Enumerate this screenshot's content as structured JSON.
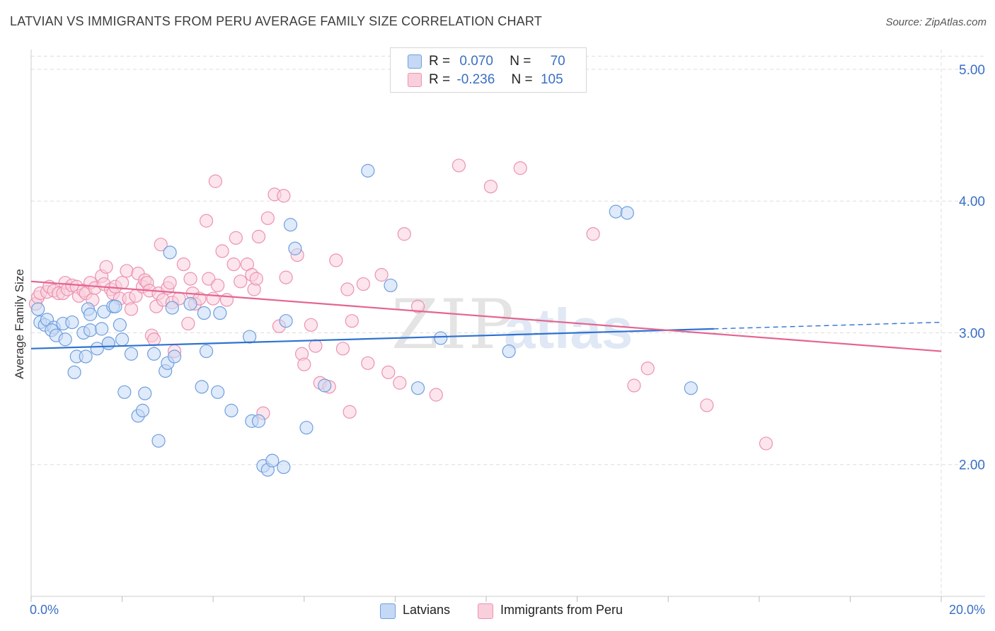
{
  "title": "LATVIAN VS IMMIGRANTS FROM PERU AVERAGE FAMILY SIZE CORRELATION CHART",
  "source": "Source: ZipAtlas.com",
  "colors": {
    "blue_fill": "#c5d8f5",
    "blue_stroke": "#6f9fde",
    "blue_line": "#2f72d0",
    "pink_fill": "#f9cfdc",
    "pink_stroke": "#ec92b0",
    "pink_line": "#e4648f",
    "grid": "#dddddd",
    "tick_text": "#3a6fc4"
  },
  "legend": {
    "rows": [
      {
        "r_label": "R =",
        "r_value": "0.070",
        "n_label": "N =",
        "n_value": "70"
      },
      {
        "r_label": "R =",
        "r_value": "-0.236",
        "n_label": "N =",
        "n_value": "105"
      }
    ]
  },
  "bottom_legend": [
    "Latvians",
    "Immigrants from Peru"
  ],
  "x_min_label": "0.0%",
  "x_max_label": "20.0%",
  "ylabel": "Average Family Size",
  "watermark": {
    "zip": "ZIP",
    "atlas": "atlas"
  },
  "chart_data": {
    "type": "scatter",
    "title": "LATVIAN VS IMMIGRANTS FROM PERU AVERAGE FAMILY SIZE CORRELATION CHART",
    "xlabel": "",
    "ylabel": "Average Family Size",
    "xlim": [
      0,
      20
    ],
    "ylim": [
      1.0,
      5.15
    ],
    "y_ticks": [
      2.0,
      3.0,
      4.0,
      5.0
    ],
    "y_tick_labels": [
      "2.00",
      "3.00",
      "4.00",
      "5.00"
    ],
    "x_ticks": [
      0,
      2,
      4,
      6,
      8,
      10,
      12,
      14,
      16,
      18,
      20
    ],
    "grid": true,
    "legend_position": "top-center",
    "series": [
      {
        "name": "Latvians",
        "r": 0.07,
        "n": 70,
        "trend": {
          "x0": 0,
          "y0": 2.88,
          "x1": 15.0,
          "y1": 3.03,
          "dash_to_x": 20,
          "dash_to_y": 3.08
        },
        "points": [
          [
            0.15,
            3.18
          ],
          [
            0.2,
            3.08
          ],
          [
            0.3,
            3.06
          ],
          [
            0.35,
            3.1
          ],
          [
            0.5,
            3.04
          ],
          [
            0.45,
            3.02
          ],
          [
            0.55,
            2.98
          ],
          [
            0.7,
            3.07
          ],
          [
            0.75,
            2.95
          ],
          [
            0.9,
            3.08
          ],
          [
            0.95,
            2.7
          ],
          [
            1.0,
            2.82
          ],
          [
            1.15,
            3.0
          ],
          [
            1.2,
            2.82
          ],
          [
            1.25,
            3.18
          ],
          [
            1.3,
            3.14
          ],
          [
            1.3,
            3.02
          ],
          [
            1.45,
            2.88
          ],
          [
            1.55,
            3.03
          ],
          [
            1.6,
            3.16
          ],
          [
            1.7,
            2.92
          ],
          [
            1.7,
            2.92
          ],
          [
            1.8,
            3.2
          ],
          [
            1.85,
            3.2
          ],
          [
            1.95,
            3.06
          ],
          [
            2.0,
            2.95
          ],
          [
            2.05,
            2.55
          ],
          [
            2.2,
            2.84
          ],
          [
            2.35,
            2.37
          ],
          [
            2.45,
            2.41
          ],
          [
            2.5,
            2.54
          ],
          [
            2.7,
            2.84
          ],
          [
            2.8,
            2.18
          ],
          [
            2.95,
            2.71
          ],
          [
            3.0,
            2.77
          ],
          [
            3.05,
            3.61
          ],
          [
            3.1,
            3.19
          ],
          [
            3.15,
            2.82
          ],
          [
            3.5,
            3.22
          ],
          [
            3.75,
            2.59
          ],
          [
            3.8,
            3.15
          ],
          [
            3.85,
            2.86
          ],
          [
            4.1,
            2.55
          ],
          [
            4.15,
            3.15
          ],
          [
            4.4,
            2.41
          ],
          [
            4.8,
            2.97
          ],
          [
            4.85,
            2.33
          ],
          [
            5.0,
            2.33
          ],
          [
            5.1,
            1.99
          ],
          [
            5.2,
            1.96
          ],
          [
            5.3,
            2.03
          ],
          [
            5.55,
            1.98
          ],
          [
            5.6,
            3.09
          ],
          [
            5.7,
            3.82
          ],
          [
            5.8,
            3.64
          ],
          [
            6.05,
            2.28
          ],
          [
            6.45,
            2.6
          ],
          [
            7.4,
            4.23
          ],
          [
            7.9,
            3.36
          ],
          [
            8.5,
            2.58
          ],
          [
            9.0,
            2.96
          ],
          [
            10.5,
            2.86
          ],
          [
            12.85,
            3.92
          ],
          [
            13.1,
            3.91
          ],
          [
            14.5,
            2.58
          ]
        ]
      },
      {
        "name": "Immigrants from Peru",
        "r": -0.236,
        "n": 105,
        "trend": {
          "x0": 0,
          "y0": 3.39,
          "x1": 20,
          "y1": 2.86
        },
        "points": [
          [
            0.1,
            3.22
          ],
          [
            0.15,
            3.27
          ],
          [
            0.2,
            3.3
          ],
          [
            0.35,
            3.31
          ],
          [
            0.4,
            3.35
          ],
          [
            0.5,
            3.32
          ],
          [
            0.6,
            3.3
          ],
          [
            0.7,
            3.3
          ],
          [
            0.75,
            3.38
          ],
          [
            0.8,
            3.33
          ],
          [
            0.9,
            3.36
          ],
          [
            1.0,
            3.35
          ],
          [
            1.05,
            3.28
          ],
          [
            1.15,
            3.32
          ],
          [
            1.2,
            3.3
          ],
          [
            1.3,
            3.38
          ],
          [
            1.35,
            3.25
          ],
          [
            1.4,
            3.34
          ],
          [
            1.55,
            3.43
          ],
          [
            1.6,
            3.37
          ],
          [
            1.65,
            3.5
          ],
          [
            1.75,
            3.33
          ],
          [
            1.8,
            3.3
          ],
          [
            1.85,
            3.35
          ],
          [
            1.95,
            3.26
          ],
          [
            2.0,
            3.38
          ],
          [
            2.1,
            3.47
          ],
          [
            2.15,
            3.26
          ],
          [
            2.2,
            3.18
          ],
          [
            2.3,
            3.28
          ],
          [
            2.35,
            3.45
          ],
          [
            2.45,
            3.35
          ],
          [
            2.5,
            3.4
          ],
          [
            2.55,
            3.38
          ],
          [
            2.6,
            3.32
          ],
          [
            2.65,
            2.98
          ],
          [
            2.7,
            2.95
          ],
          [
            2.75,
            3.2
          ],
          [
            2.8,
            3.3
          ],
          [
            2.85,
            3.67
          ],
          [
            2.9,
            3.25
          ],
          [
            3.0,
            3.34
          ],
          [
            3.05,
            3.38
          ],
          [
            3.1,
            3.23
          ],
          [
            3.15,
            2.86
          ],
          [
            3.25,
            3.26
          ],
          [
            3.35,
            3.52
          ],
          [
            3.45,
            3.07
          ],
          [
            3.5,
            3.41
          ],
          [
            3.55,
            3.3
          ],
          [
            3.6,
            3.22
          ],
          [
            3.7,
            3.26
          ],
          [
            3.85,
            3.85
          ],
          [
            3.9,
            3.41
          ],
          [
            4.0,
            3.26
          ],
          [
            4.05,
            4.15
          ],
          [
            4.1,
            3.36
          ],
          [
            4.2,
            3.62
          ],
          [
            4.3,
            3.25
          ],
          [
            4.45,
            3.52
          ],
          [
            4.5,
            3.72
          ],
          [
            4.6,
            3.39
          ],
          [
            4.75,
            3.52
          ],
          [
            4.85,
            3.44
          ],
          [
            4.9,
            3.33
          ],
          [
            4.95,
            3.41
          ],
          [
            5.0,
            3.73
          ],
          [
            5.1,
            2.39
          ],
          [
            5.2,
            3.87
          ],
          [
            5.35,
            4.05
          ],
          [
            5.45,
            3.05
          ],
          [
            5.55,
            4.04
          ],
          [
            5.6,
            3.42
          ],
          [
            5.85,
            3.59
          ],
          [
            5.95,
            2.84
          ],
          [
            6.0,
            2.76
          ],
          [
            6.15,
            3.06
          ],
          [
            6.25,
            2.9
          ],
          [
            6.35,
            2.62
          ],
          [
            6.55,
            2.59
          ],
          [
            6.7,
            3.55
          ],
          [
            6.85,
            2.88
          ],
          [
            6.95,
            3.33
          ],
          [
            7.0,
            2.4
          ],
          [
            7.05,
            3.09
          ],
          [
            7.3,
            3.37
          ],
          [
            7.4,
            2.77
          ],
          [
            7.7,
            3.44
          ],
          [
            7.85,
            2.7
          ],
          [
            8.1,
            2.62
          ],
          [
            8.2,
            3.75
          ],
          [
            8.5,
            3.2
          ],
          [
            8.9,
            2.53
          ],
          [
            9.4,
            4.27
          ],
          [
            10.1,
            4.11
          ],
          [
            10.75,
            4.25
          ],
          [
            12.35,
            3.75
          ],
          [
            13.25,
            2.6
          ],
          [
            13.55,
            2.73
          ],
          [
            14.85,
            2.45
          ],
          [
            16.15,
            2.16
          ]
        ]
      }
    ]
  }
}
